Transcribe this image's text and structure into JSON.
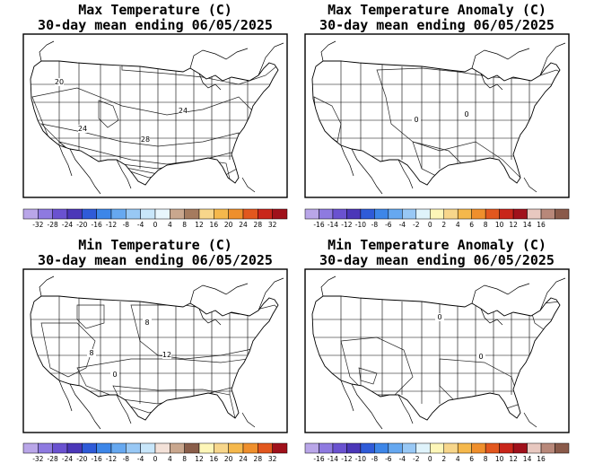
{
  "panels": [
    {
      "id": "max-temp",
      "title_line1": "Max Temperature (C)",
      "title_line2": "30-day mean ending 06/05/2025",
      "contour_labels": [
        "20",
        "24",
        "24",
        "28"
      ],
      "colorbar": {
        "ticks": [
          "-32",
          "-28",
          "-24",
          "-20",
          "-16",
          "-12",
          "-8",
          "-4",
          "0",
          "4",
          "8",
          "12",
          "16",
          "20",
          "24",
          "28",
          "32"
        ],
        "colors": [
          "#b9a6e8",
          "#8e7ae0",
          "#6a52d0",
          "#4b37b8",
          "#2f5bd8",
          "#3d86e8",
          "#66a8f0",
          "#98c8f5",
          "#c8e6fa",
          "#e8f6fd",
          "#c9a78e",
          "#a57b5e",
          "#f7d68b",
          "#f5b84c",
          "#ef8f2c",
          "#e2571e",
          "#c9261a",
          "#a0111b"
        ]
      }
    },
    {
      "id": "max-temp-anomaly",
      "title_line1": "Max Temperature Anomaly (C)",
      "title_line2": "30-day mean ending 06/05/2025",
      "contour_labels": [
        "0",
        "0"
      ],
      "colorbar": {
        "ticks": [
          "-16",
          "-14",
          "-12",
          "-10",
          "-8",
          "-6",
          "-4",
          "-2",
          "0",
          "2",
          "4",
          "6",
          "8",
          "10",
          "12",
          "14",
          "16"
        ],
        "colors": [
          "#b9a6e8",
          "#8e7ae0",
          "#6a52d0",
          "#4b37b8",
          "#2f5bd8",
          "#3d86e8",
          "#66a8f0",
          "#98c8f5",
          "#dff3fb",
          "#fdf6b8",
          "#f7d68b",
          "#f5b84c",
          "#ef8f2c",
          "#e2571e",
          "#c9261a",
          "#a0111b",
          "#e8c8c0",
          "#b8887a",
          "#8a5a4a"
        ]
      }
    },
    {
      "id": "min-temp",
      "title_line1": "Min Temperature (C)",
      "title_line2": "30-day mean ending 06/05/2025",
      "contour_labels": [
        "8",
        "8",
        "12",
        "0"
      ],
      "colorbar": {
        "ticks": [
          "-32",
          "-28",
          "-24",
          "-20",
          "-16",
          "-12",
          "-8",
          "-4",
          "0",
          "4",
          "8",
          "12",
          "16",
          "20",
          "24",
          "28",
          "32"
        ],
        "colors": [
          "#b9a6e8",
          "#8e7ae0",
          "#6a52d0",
          "#4b37b8",
          "#2f5bd8",
          "#3d86e8",
          "#66a8f0",
          "#98c8f5",
          "#c8e6fa",
          "#f3e1d8",
          "#c9a78e",
          "#8a5e4a",
          "#fdf6b8",
          "#f7d68b",
          "#f5b84c",
          "#ef8f2c",
          "#e2571e",
          "#a0111b"
        ]
      }
    },
    {
      "id": "min-temp-anomaly",
      "title_line1": "Min Temperature Anomaly (C)",
      "title_line2": "30-day mean ending 06/05/2025",
      "contour_labels": [
        "0",
        "0"
      ],
      "colorbar": {
        "ticks": [
          "-16",
          "-14",
          "-12",
          "-10",
          "-8",
          "-6",
          "-4",
          "-2",
          "0",
          "2",
          "4",
          "6",
          "8",
          "10",
          "12",
          "14",
          "16"
        ],
        "colors": [
          "#b9a6e8",
          "#8e7ae0",
          "#6a52d0",
          "#4b37b8",
          "#2f5bd8",
          "#3d86e8",
          "#66a8f0",
          "#98c8f5",
          "#dff3fb",
          "#fdf6b8",
          "#f7d68b",
          "#f5b84c",
          "#ef8f2c",
          "#e2571e",
          "#c9261a",
          "#a0111b",
          "#e8c8c0",
          "#b8887a",
          "#8a5a4a"
        ]
      }
    }
  ]
}
